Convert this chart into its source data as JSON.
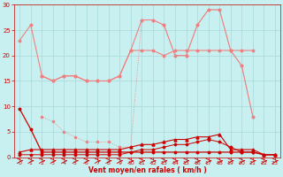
{
  "x": [
    0,
    1,
    2,
    3,
    4,
    5,
    6,
    7,
    8,
    9,
    10,
    11,
    12,
    13,
    14,
    15,
    16,
    17,
    18,
    19,
    20,
    21,
    22,
    23
  ],
  "light1": [
    23,
    26,
    null,
    null,
    null,
    null,
    null,
    null,
    null,
    null,
    null,
    null,
    null,
    null,
    null,
    null,
    null,
    null,
    null,
    null,
    null,
    null,
    null,
    null
  ],
  "light2_x": [
    0,
    1,
    2,
    3,
    4,
    5,
    6,
    7,
    8,
    9,
    10,
    11,
    12,
    13,
    14,
    15,
    16,
    17,
    18,
    19,
    20,
    21
  ],
  "light2": [
    23,
    26,
    16,
    15,
    16,
    16,
    15,
    15,
    15,
    16,
    21,
    27,
    27,
    26,
    20,
    20,
    26,
    29,
    29,
    21,
    18,
    8
  ],
  "light3_x": [
    2,
    3,
    4,
    5,
    6,
    7,
    8,
    9,
    10,
    11,
    12,
    13,
    14,
    15,
    16,
    17,
    18,
    19,
    20,
    21,
    22,
    23
  ],
  "light3": [
    16,
    15,
    16,
    16,
    15,
    15,
    15,
    16,
    21,
    21,
    21,
    20,
    21,
    21,
    21,
    21,
    21,
    21,
    21,
    21,
    null,
    null
  ],
  "light4_x": [
    2,
    3,
    4,
    5,
    6,
    7,
    8,
    9,
    10,
    11,
    12,
    13,
    14,
    15,
    16,
    17,
    18,
    19,
    20,
    21,
    22,
    23
  ],
  "light4": [
    8,
    7,
    5,
    4,
    3,
    3,
    3,
    2,
    2,
    27,
    27,
    26,
    20,
    20,
    26,
    29,
    29,
    21,
    18,
    8,
    null,
    null
  ],
  "dark1": [
    9.5,
    5.5,
    1.0,
    1.0,
    1.0,
    1.0,
    1.0,
    1.0,
    1.0,
    1.0,
    1.0,
    1.0,
    1.0,
    1.0,
    1.0,
    1.0,
    1.0,
    1.0,
    1.0,
    1.0,
    1.0,
    1.0,
    0.5,
    0.5
  ],
  "dark2": [
    1.0,
    1.5,
    1.5,
    1.5,
    1.5,
    1.5,
    1.5,
    1.5,
    1.5,
    1.5,
    2.0,
    2.5,
    2.5,
    3.0,
    3.5,
    3.5,
    4.0,
    4.0,
    4.5,
    1.5,
    1.5,
    1.5,
    0.5,
    0.5
  ],
  "dark3": [
    0.5,
    0.5,
    0.5,
    0.5,
    0.5,
    0.5,
    0.5,
    0.5,
    0.5,
    0.5,
    1.0,
    1.5,
    1.5,
    2.0,
    2.5,
    2.5,
    3.0,
    3.5,
    3.0,
    2.0,
    1.0,
    1.0,
    0.5,
    0.5
  ],
  "color_light": "#f08080",
  "color_dark": "#cc0000",
  "bg_color": "#c8f0f0",
  "grid_color": "#a8d8d8",
  "xlabel": "Vent moyen/en rafales ( km/h )",
  "ylim": [
    0,
    30
  ],
  "xlim": [
    -0.5,
    23.5
  ],
  "yticks": [
    0,
    5,
    10,
    15,
    20,
    25,
    30
  ],
  "xticks": [
    0,
    1,
    2,
    3,
    4,
    5,
    6,
    7,
    8,
    9,
    10,
    11,
    12,
    13,
    14,
    15,
    16,
    17,
    18,
    19,
    20,
    21,
    22,
    23
  ]
}
